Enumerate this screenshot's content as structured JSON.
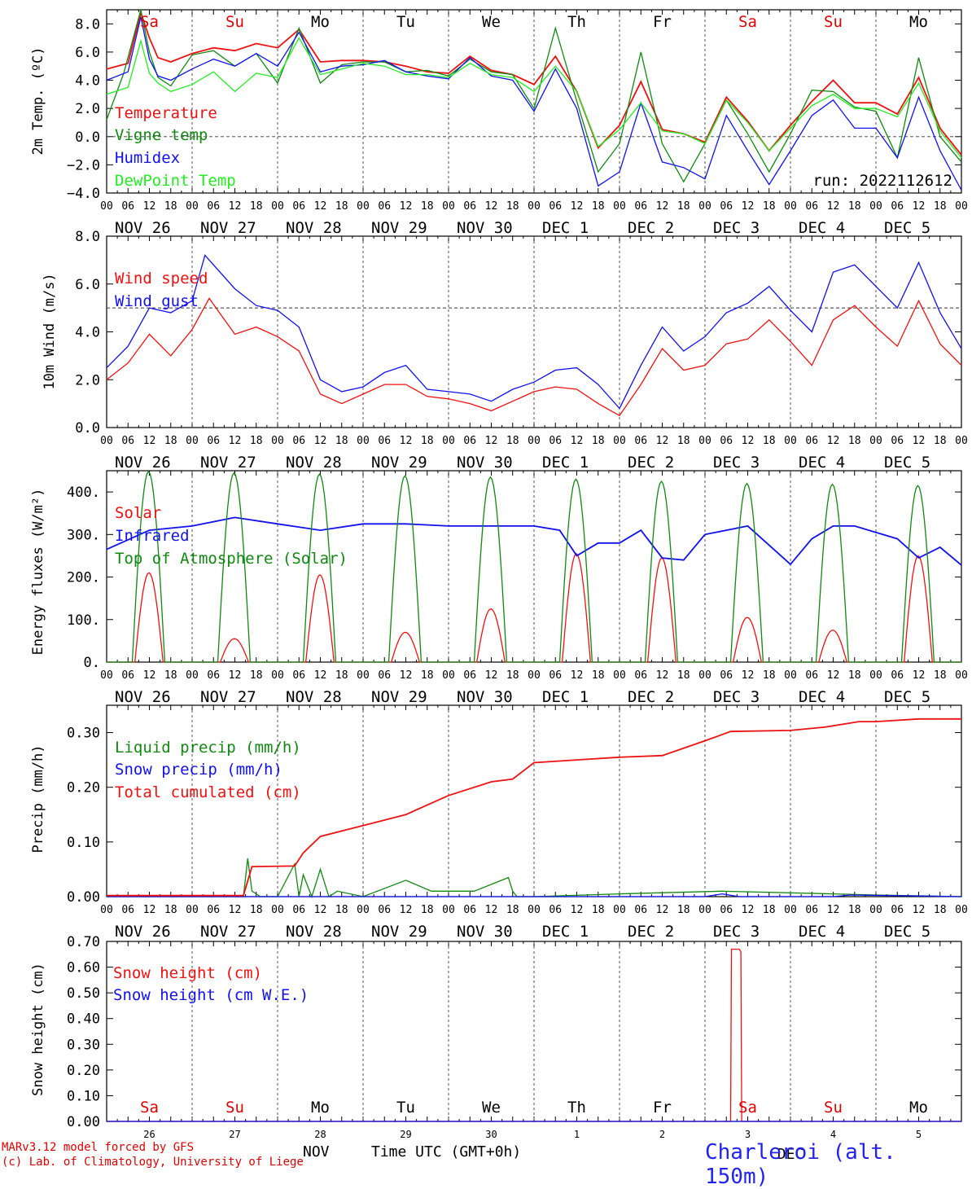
{
  "run_label": "run: 2022112612",
  "footer": {
    "credit_line1": "MARv3.12 model forced by GFS",
    "credit_line2": "(c) Lab. of Climatology, University of Liege",
    "month": "NOV",
    "month2": "DEC",
    "time_axis": "Time UTC (GMT+0h)",
    "station": "Charleroi (alt. 150m)"
  },
  "axis": {
    "day_labels": [
      "NOV 26",
      "NOV 27",
      "NOV 28",
      "NOV 29",
      "NOV 30",
      "DEC  1",
      "DEC  2",
      "DEC  3",
      "DEC  4",
      "DEC  5"
    ],
    "hour_ticks": [
      "00",
      "06",
      "12",
      "18"
    ],
    "weekdays": [
      "Sa",
      "Su",
      "Mo",
      "Tu",
      "We",
      "Th",
      "Fr",
      "Sa",
      "Su",
      "Mo"
    ],
    "weekday_colors": [
      "#e00000",
      "#e00000",
      "#000000",
      "#000000",
      "#000000",
      "#000000",
      "#000000",
      "#e00000",
      "#e00000",
      "#000000"
    ],
    "day_numbers": [
      "26",
      "27",
      "28",
      "29",
      "30",
      "1",
      "2",
      "3",
      "4",
      "5"
    ]
  },
  "colors": {
    "red": "#ee1111",
    "green": "#118811",
    "blue": "#1111ee",
    "lightgreen": "#22ee22",
    "purple": "#800080"
  },
  "chart_data": [
    {
      "type": "line",
      "ylabel": "2m Temp. (ºC)",
      "ylim": [
        -4,
        9
      ],
      "yticks": [
        "8.0",
        "6.0",
        "4.0",
        "2.0",
        "0.0",
        "−2.0",
        "−4.0"
      ],
      "ytick_values": [
        8,
        6,
        4,
        2,
        0,
        -2,
        -4
      ],
      "reference_line": 0,
      "x_unit": "days since NOV 26 00 UTC",
      "series": [
        {
          "name": "Temperature",
          "color": "#ee1111",
          "x": [
            0,
            0.25,
            0.4,
            0.5,
            0.6,
            0.75,
            1.0,
            1.25,
            1.5,
            1.75,
            2.0,
            2.25,
            2.5,
            2.75,
            3.0,
            3.25,
            3.5,
            3.75,
            4.0,
            4.25,
            4.5,
            4.75,
            5.0,
            5.25,
            5.5,
            5.75,
            6.0,
            6.25,
            6.5,
            6.75,
            7.0,
            7.25,
            7.5,
            7.75,
            8.0,
            8.25,
            8.5,
            8.75,
            9.0,
            9.25,
            9.5,
            9.75,
            10.0
          ],
          "values": [
            4.8,
            5.2,
            8.8,
            7.0,
            5.6,
            5.3,
            5.9,
            6.3,
            6.1,
            6.6,
            6.3,
            7.6,
            5.3,
            5.4,
            5.4,
            5.3,
            5.0,
            4.6,
            4.5,
            5.7,
            4.7,
            4.4,
            3.7,
            5.7,
            3.2,
            -0.8,
            0.8,
            3.9,
            0.5,
            0.2,
            -0.4,
            2.8,
            1.1,
            -1.0,
            0.8,
            2.5,
            4.0,
            2.4,
            2.4,
            1.6,
            4.2,
            0.6,
            -1.3
          ]
        },
        {
          "name": "Vigne temp",
          "color": "#118811",
          "x": [
            0,
            0.2,
            0.4,
            0.5,
            0.6,
            0.75,
            1.0,
            1.25,
            1.5,
            1.75,
            2.0,
            2.25,
            2.5,
            2.75,
            3.0,
            3.25,
            3.5,
            3.75,
            4.0,
            4.25,
            4.5,
            4.75,
            5.0,
            5.25,
            5.5,
            5.75,
            6.0,
            6.25,
            6.5,
            6.75,
            7.0,
            7.25,
            7.5,
            7.75,
            8.0,
            8.25,
            8.5,
            8.75,
            9.0,
            9.25,
            9.5,
            9.75,
            10.0
          ],
          "values": [
            1.2,
            4.5,
            9.0,
            6.0,
            4.2,
            3.6,
            5.8,
            6.1,
            5.0,
            5.9,
            3.8,
            7.7,
            3.8,
            5.1,
            5.3,
            5.3,
            4.6,
            4.7,
            4.3,
            5.5,
            4.6,
            4.4,
            2.0,
            7.7,
            2.5,
            -2.5,
            -0.5,
            6.0,
            -0.5,
            -3.2,
            -0.5,
            2.6,
            0.2,
            -2.5,
            0.2,
            3.3,
            3.2,
            2.1,
            1.8,
            -1.5,
            5.6,
            0.0,
            -1.8
          ]
        },
        {
          "name": "Humidex",
          "color": "#1111ee",
          "x": [
            0,
            0.25,
            0.4,
            0.5,
            0.6,
            0.75,
            1.0,
            1.25,
            1.5,
            1.75,
            2.0,
            2.25,
            2.5,
            2.75,
            3.0,
            3.25,
            3.5,
            3.75,
            4.0,
            4.25,
            4.5,
            4.75,
            5.0,
            5.25,
            5.5,
            5.75,
            6.0,
            6.25,
            6.5,
            6.75,
            7.0,
            7.25,
            7.5,
            7.75,
            8.0,
            8.25,
            8.5,
            8.75,
            9.0,
            9.25,
            9.5,
            9.75,
            10.0
          ],
          "values": [
            4.0,
            4.6,
            8.5,
            5.5,
            4.3,
            4.0,
            4.8,
            5.5,
            5.0,
            5.9,
            5.0,
            7.4,
            4.6,
            5.0,
            5.1,
            5.4,
            4.6,
            4.3,
            4.1,
            5.6,
            4.3,
            4.0,
            1.8,
            4.8,
            2.0,
            -3.5,
            -2.5,
            2.4,
            -1.8,
            -2.2,
            -3.0,
            1.5,
            -1.0,
            -3.4,
            -1.0,
            1.5,
            2.6,
            0.6,
            0.6,
            -1.5,
            2.8,
            -1.0,
            -3.8
          ]
        },
        {
          "name": "DewPoint Temp",
          "color": "#22ee22",
          "x": [
            0,
            0.25,
            0.4,
            0.5,
            0.6,
            0.75,
            1.0,
            1.25,
            1.5,
            1.75,
            2.0,
            2.25,
            2.5,
            2.75,
            3.0,
            3.25,
            3.5,
            3.75,
            4.0,
            4.25,
            4.5,
            4.75,
            5.0,
            5.25,
            5.5,
            5.75,
            6.0,
            6.25,
            6.5,
            6.75,
            7.0,
            7.25,
            7.5,
            7.75,
            8.0,
            8.25,
            8.5,
            8.75,
            9.0,
            9.25,
            9.5,
            9.75,
            10.0
          ],
          "values": [
            3.0,
            3.5,
            6.8,
            4.5,
            3.8,
            3.2,
            3.7,
            4.6,
            3.2,
            4.5,
            4.2,
            7.0,
            4.4,
            4.8,
            5.2,
            5.0,
            4.4,
            4.4,
            4.2,
            5.2,
            4.4,
            4.2,
            3.2,
            5.0,
            3.2,
            -0.7,
            0.5,
            2.4,
            0.4,
            0.2,
            -0.5,
            2.6,
            1.0,
            -1.0,
            0.6,
            2.2,
            3.0,
            2.0,
            2.0,
            1.4,
            3.8,
            0.4,
            -1.5
          ]
        }
      ]
    },
    {
      "type": "line",
      "ylabel": "10m Wind (m/s)",
      "ylim": [
        0,
        8
      ],
      "yticks": [
        "8.0",
        "6.0",
        "4.0",
        "2.0",
        "0.0"
      ],
      "ytick_values": [
        8,
        6,
        4,
        2,
        0
      ],
      "reference_line": 5,
      "x_unit": "days since NOV 26 00 UTC",
      "series": [
        {
          "name": "Wind speed",
          "color": "#ee1111",
          "x": [
            0,
            0.25,
            0.5,
            0.75,
            1.0,
            1.2,
            1.5,
            1.75,
            2.0,
            2.25,
            2.5,
            2.75,
            3.0,
            3.25,
            3.5,
            3.75,
            4.0,
            4.25,
            4.5,
            4.75,
            5.0,
            5.25,
            5.5,
            5.75,
            6.0,
            6.25,
            6.5,
            6.75,
            7.0,
            7.25,
            7.5,
            7.75,
            8.0,
            8.25,
            8.5,
            8.75,
            9.0,
            9.25,
            9.5,
            9.75,
            10.0
          ],
          "values": [
            2.0,
            2.7,
            3.9,
            3.0,
            4.1,
            5.4,
            3.9,
            4.2,
            3.8,
            3.2,
            1.4,
            1.0,
            1.4,
            1.8,
            1.8,
            1.3,
            1.2,
            1.0,
            0.7,
            1.1,
            1.5,
            1.7,
            1.6,
            1.0,
            0.5,
            1.8,
            3.3,
            2.4,
            2.6,
            3.5,
            3.7,
            4.5,
            3.6,
            2.6,
            4.5,
            5.1,
            4.2,
            3.4,
            5.3,
            3.5,
            2.6
          ]
        },
        {
          "name": "Wind gust",
          "color": "#1111ee",
          "x": [
            0,
            0.25,
            0.5,
            0.75,
            1.0,
            1.15,
            1.5,
            1.75,
            2.0,
            2.25,
            2.5,
            2.75,
            3.0,
            3.25,
            3.5,
            3.75,
            4.0,
            4.25,
            4.5,
            4.75,
            5.0,
            5.25,
            5.5,
            5.75,
            6.0,
            6.25,
            6.5,
            6.75,
            7.0,
            7.25,
            7.5,
            7.75,
            8.0,
            8.25,
            8.5,
            8.75,
            9.0,
            9.25,
            9.5,
            9.75,
            10.0
          ],
          "values": [
            2.5,
            3.4,
            5.0,
            4.8,
            5.3,
            7.2,
            5.8,
            5.1,
            4.9,
            4.2,
            2.0,
            1.5,
            1.7,
            2.3,
            2.6,
            1.6,
            1.5,
            1.4,
            1.1,
            1.6,
            1.9,
            2.4,
            2.5,
            1.8,
            0.8,
            2.6,
            4.2,
            3.2,
            3.8,
            4.8,
            5.2,
            5.9,
            4.9,
            4.0,
            6.5,
            6.8,
            5.9,
            5.0,
            6.9,
            4.8,
            3.3
          ]
        }
      ]
    },
    {
      "type": "line",
      "ylabel": "Energy fluxes (W/m²)",
      "ylim": [
        0,
        450
      ],
      "yticks": [
        "400.",
        "300.",
        "200.",
        "100.",
        "0."
      ],
      "ytick_values": [
        400,
        300,
        200,
        100,
        0
      ],
      "x_unit": "days since NOV 26 00 UTC",
      "series": [
        {
          "name": "Solar",
          "color": "#ee1111",
          "daily_peak": [
            210,
            55,
            205,
            70,
            125,
            255,
            245,
            105,
            75,
            250
          ]
        },
        {
          "name": "Infrared",
          "color": "#1111ee",
          "x": [
            0,
            0.5,
            1.0,
            1.5,
            2.0,
            2.5,
            3.0,
            3.5,
            4.0,
            4.5,
            5.0,
            5.3,
            5.5,
            5.75,
            6.0,
            6.25,
            6.5,
            6.75,
            7.0,
            7.25,
            7.5,
            7.75,
            8.0,
            8.25,
            8.5,
            8.75,
            9.0,
            9.25,
            9.5,
            9.75,
            10.0
          ],
          "values": [
            265,
            310,
            320,
            340,
            325,
            310,
            325,
            325,
            320,
            320,
            320,
            310,
            250,
            280,
            280,
            310,
            245,
            240,
            300,
            310,
            320,
            275,
            230,
            290,
            320,
            320,
            305,
            290,
            245,
            270,
            228
          ]
        },
        {
          "name": "Top of Atmosphere (Solar)",
          "color": "#118811",
          "daily_peak": [
            448,
            445,
            442,
            438,
            435,
            430,
            425,
            420,
            418,
            415
          ]
        }
      ]
    },
    {
      "type": "line",
      "ylabel": "Precip (mm/h)",
      "ylim": [
        0,
        0.35
      ],
      "yticks": [
        "0.30",
        "0.20",
        "0.10",
        "0.00"
      ],
      "ytick_values": [
        0.3,
        0.2,
        0.1,
        0.0
      ],
      "x_unit": "days since NOV 26 00 UTC",
      "series": [
        {
          "name": "Liquid precip (mm/h)",
          "color": "#118811",
          "x": [
            0,
            1.6,
            1.65,
            1.7,
            1.8,
            2.0,
            2.2,
            2.25,
            2.3,
            2.4,
            2.5,
            2.6,
            2.7,
            3.0,
            3.5,
            3.8,
            4.3,
            4.7,
            4.75,
            4.8,
            5.0,
            6.0,
            7.2,
            8.5,
            9.0,
            10.0
          ],
          "values": [
            0,
            0,
            0.07,
            0.01,
            0.0,
            0,
            0.06,
            0.0,
            0.04,
            0.0,
            0.05,
            0.0,
            0.01,
            0,
            0.03,
            0.01,
            0.01,
            0.035,
            0.01,
            0,
            0,
            0.005,
            0.01,
            0.005,
            0.003,
            0
          ]
        },
        {
          "name": "Snow precip (mm/h)",
          "color": "#1111ee",
          "x": [
            0,
            7.0,
            7.2,
            7.4,
            8.5,
            8.7,
            10.0
          ],
          "values": [
            0,
            0,
            0.005,
            0,
            0,
            0.003,
            0
          ]
        },
        {
          "name": "Total cumulated (cm)",
          "color": "#ee1111",
          "x": [
            0,
            1.6,
            1.7,
            2.2,
            2.3,
            2.5,
            3.0,
            3.5,
            4.0,
            4.5,
            4.75,
            5.0,
            5.5,
            6.0,
            6.5,
            7.0,
            7.3,
            8.0,
            8.4,
            8.8,
            9.0,
            9.5,
            10.0
          ],
          "values": [
            0.002,
            0.002,
            0.055,
            0.056,
            0.08,
            0.11,
            0.13,
            0.15,
            0.185,
            0.21,
            0.215,
            0.245,
            0.25,
            0.255,
            0.258,
            0.285,
            0.302,
            0.304,
            0.31,
            0.32,
            0.32,
            0.325,
            0.325
          ]
        }
      ]
    },
    {
      "type": "line",
      "ylabel": "Snow height (cm)",
      "ylim": [
        0,
        0.7
      ],
      "yticks": [
        "0.70",
        "0.60",
        "0.50",
        "0.40",
        "0.30",
        "0.20",
        "0.10",
        "0.00"
      ],
      "ytick_values": [
        0.7,
        0.6,
        0.5,
        0.4,
        0.3,
        0.2,
        0.1,
        0.0
      ],
      "x_unit": "days since NOV 26 00 UTC",
      "series": [
        {
          "name": "Snow height (cm)",
          "color": "#ee1111",
          "x": [
            0,
            7.3,
            7.31,
            7.4,
            7.42,
            7.43,
            10.0
          ],
          "values": [
            0,
            0,
            0.67,
            0.67,
            0.66,
            0,
            0
          ]
        },
        {
          "name": "Snow height (cm W.E.)",
          "color": "#1111ee",
          "x": [
            0,
            10.0
          ],
          "values": [
            0,
            0
          ]
        }
      ]
    }
  ]
}
